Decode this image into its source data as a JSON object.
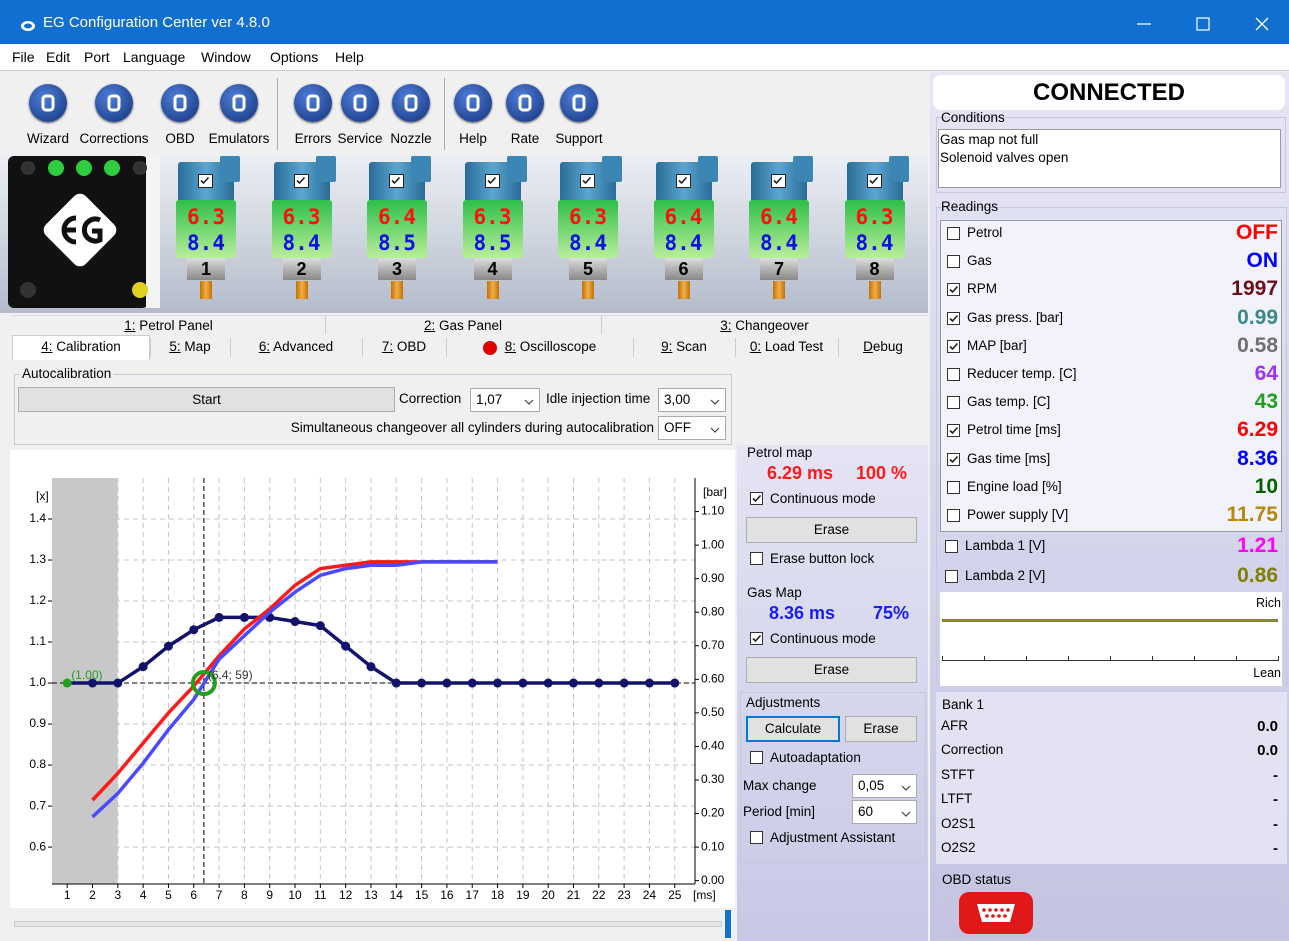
{
  "window": {
    "title": "EG Configuration Center ver 4.8.0"
  },
  "menu": [
    "File",
    "Edit",
    "Port",
    "Language",
    "Window",
    "Options",
    "Help"
  ],
  "toolbar": [
    "Wizard",
    "Corrections",
    "OBD",
    "Emulators",
    "Errors",
    "Service",
    "Nozzle",
    "Help",
    "Rate",
    "Support"
  ],
  "injectors": [
    {
      "petrol": "6.3",
      "gas": "8.4",
      "number": "1"
    },
    {
      "petrol": "6.3",
      "gas": "8.4",
      "number": "2"
    },
    {
      "petrol": "6.4",
      "gas": "8.5",
      "number": "3"
    },
    {
      "petrol": "6.3",
      "gas": "8.5",
      "number": "4"
    },
    {
      "petrol": "6.3",
      "gas": "8.4",
      "number": "5"
    },
    {
      "petrol": "6.4",
      "gas": "8.4",
      "number": "6"
    },
    {
      "petrol": "6.4",
      "gas": "8.4",
      "number": "7"
    },
    {
      "petrol": "6.3",
      "gas": "8.4",
      "number": "8"
    }
  ],
  "tabs_top": [
    "1: Petrol Panel",
    "2: Gas Panel",
    "3: Changeover"
  ],
  "tabs": [
    "4: Calibration",
    "5: Map",
    "6: Advanced",
    "7: OBD",
    "8: Oscilloscope",
    "9: Scan",
    "0: Load Test",
    "Debug"
  ],
  "autocalibration": {
    "title": "Autocalibration",
    "start": "Start",
    "correction_label": "Correction",
    "correction": "1,07",
    "idle_label": "Idle injection time",
    "idle": "3,00",
    "simultaneous_label": "Simultaneous changeover all cylinders during autocalibration",
    "simultaneous": "OFF"
  },
  "chart_data": {
    "type": "line",
    "y_label": "[x]",
    "y2_label": "[bar]",
    "x_unit": "[ms]",
    "xlim": [
      0.4,
      25.8
    ],
    "xticks": [
      1,
      2,
      3,
      4,
      5,
      6,
      7,
      8,
      9,
      10,
      11,
      12,
      13,
      14,
      15,
      16,
      17,
      18,
      19,
      20,
      21,
      22,
      23,
      24,
      25
    ],
    "ylim": [
      0.51,
      1.5
    ],
    "yticks": [
      0.6,
      0.7,
      0.8,
      0.9,
      {
        "value": 1,
        "label": "1.0"
      },
      1.1,
      1.2,
      1.3,
      1.4
    ],
    "y2lim": [
      -0.01,
      1.2
    ],
    "y2ticks": [
      {
        "value": 0,
        "label": "0.00"
      },
      {
        "value": 0.1,
        "label": "0.10"
      },
      {
        "value": 0.2,
        "label": "0.20"
      },
      {
        "value": 0.3,
        "label": "0.30"
      },
      {
        "value": 0.4,
        "label": "0.40"
      },
      {
        "value": 0.5,
        "label": "0.50"
      },
      {
        "value": 0.6,
        "label": "0.60"
      },
      {
        "value": 0.7,
        "label": "0.70"
      },
      {
        "value": 0.8,
        "label": "0.80"
      },
      {
        "value": 0.9,
        "label": "0.90"
      },
      {
        "value": 1,
        "label": "1.00"
      },
      {
        "value": 1.1,
        "label": "1.10"
      }
    ],
    "grid": true,
    "shaded_x": [
      0.4,
      3
    ],
    "x": [
      1,
      2,
      3,
      4,
      5,
      6,
      7,
      8,
      9,
      10,
      11,
      12,
      13,
      14,
      15,
      16,
      17,
      18,
      19,
      20,
      21,
      22,
      23,
      24,
      25
    ],
    "series": [
      {
        "color": "#12126a",
        "markers": true,
        "values": [
          1.0,
          1.0,
          1.0,
          1.04,
          1.09,
          1.13,
          1.16,
          1.16,
          1.16,
          1.15,
          1.14,
          1.09,
          1.04,
          1.0,
          1.0,
          1.0,
          1.0,
          1.0,
          1.0,
          1.0,
          1.0,
          1.0,
          1.0,
          1.0,
          1.0
        ]
      },
      {
        "color": "#ff1a1a",
        "axis": "y2",
        "values": [
          null,
          0.24,
          0.32,
          0.41,
          0.5,
          0.58,
          0.67,
          0.75,
          0.81,
          0.88,
          0.93,
          0.94,
          0.95,
          0.95,
          0.95,
          0.95,
          0.95,
          0.95,
          null,
          null,
          null,
          null,
          null,
          null,
          null
        ]
      },
      {
        "color": "#4a4aff",
        "axis": "y2",
        "values": [
          null,
          0.19,
          0.26,
          0.35,
          0.45,
          0.54,
          0.66,
          0.73,
          0.8,
          0.86,
          0.91,
          0.93,
          0.94,
          0.94,
          0.95,
          0.95,
          0.95,
          0.95,
          null,
          null,
          null,
          null,
          null,
          null,
          null
        ]
      }
    ],
    "highlight_color": "#22a022",
    "cursor": {
      "x": 6.4,
      "y": 1.0
    },
    "annotations": [
      {
        "text": "(1.00)",
        "x": 1,
        "y": 1.0,
        "color": "#22a022"
      },
      {
        "text": "(6.4; 59)",
        "x": 6.4,
        "y": 1.0,
        "color": "#333333"
      }
    ]
  },
  "petrol_map": {
    "title": "Petrol map",
    "time": "6.29 ms",
    "percent": "100 %",
    "continuous": "Continuous mode",
    "erase": "Erase",
    "erase_lock": "Erase button lock"
  },
  "gas_map": {
    "title": "Gas Map",
    "time": "8.36 ms",
    "percent": "75%",
    "continuous": "Continuous mode",
    "erase": "Erase"
  },
  "adjustments": {
    "title": "Adjustments",
    "calculate": "Calculate",
    "erase": "Erase",
    "autoadaptation": "Autoadaptation",
    "max_change_label": "Max change",
    "max_change": "0,05",
    "period_label": "Period [min]",
    "period": "60",
    "assistant": "Adjustment Assistant"
  },
  "status": "CONNECTED",
  "conditions": {
    "title": "Conditions",
    "lines": [
      "Gas map not full",
      "Solenoid valves open"
    ]
  },
  "readings": {
    "title": "Readings",
    "rows": [
      {
        "label": "Petrol",
        "value": "OFF",
        "color": "#ff0000",
        "checked": false
      },
      {
        "label": "Gas",
        "value": "ON",
        "color": "#0000ff",
        "checked": false
      },
      {
        "label": "RPM",
        "value": "1997",
        "color": "#6b0f1a",
        "checked": true
      },
      {
        "label": "Gas press. [bar]",
        "value": "0.99",
        "color": "#3a8a8a",
        "checked": true
      },
      {
        "label": "MAP [bar]",
        "value": "0.58",
        "color": "#707070",
        "checked": true
      },
      {
        "label": "Reducer temp. [C]",
        "value": "64",
        "color": "#9b30ff",
        "checked": false
      },
      {
        "label": "Gas temp. [C]",
        "value": "43",
        "color": "#1e9e1e",
        "checked": false
      },
      {
        "label": "Petrol time [ms]",
        "value": "6.29",
        "color": "#ff0000",
        "checked": true
      },
      {
        "label": "Gas time [ms]",
        "value": "8.36",
        "color": "#0000ff",
        "checked": true
      },
      {
        "label": "Engine load [%]",
        "value": "10",
        "color": "#006400",
        "checked": false
      },
      {
        "label": "Power supply [V]",
        "value": "11.75",
        "color": "#b8860b",
        "checked": false
      },
      {
        "label": "Lambda 1 [V]",
        "value": "1.21",
        "color": "#ff00ff",
        "checked": false
      },
      {
        "label": "Lambda 2 [V]",
        "value": "0.86",
        "color": "#808000",
        "checked": false
      }
    ]
  },
  "lambda_graph": {
    "rich": "Rich",
    "lean": "Lean",
    "color": "#8b8b1a"
  },
  "bank": {
    "title": "Bank 1",
    "rows": [
      {
        "label": "AFR",
        "value": "0.0"
      },
      {
        "label": "Correction",
        "value": "0.0"
      },
      {
        "label": "STFT",
        "value": "-"
      },
      {
        "label": "LTFT",
        "value": "-"
      },
      {
        "label": "O2S1",
        "value": "-"
      },
      {
        "label": "O2S2",
        "value": "-"
      }
    ]
  },
  "obd_status": {
    "title": "OBD status"
  }
}
